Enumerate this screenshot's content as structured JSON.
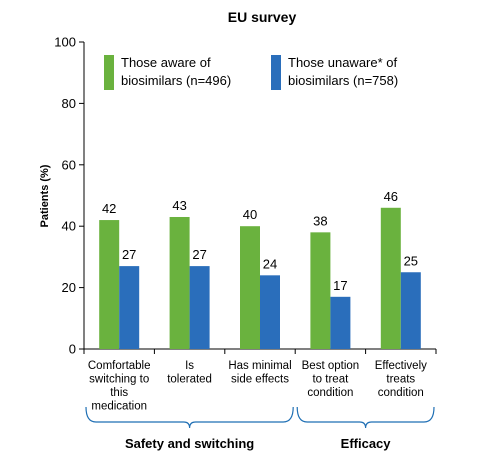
{
  "chart_data": {
    "type": "bar",
    "title": "EU survey",
    "ylabel": "Patients (%)",
    "xlabel": "",
    "ylim": [
      0,
      100
    ],
    "yticks": [
      0,
      20,
      40,
      60,
      80,
      100
    ],
    "grid": false,
    "legend_position": "top",
    "categories": [
      [
        "Comfortable",
        "switching to",
        "this",
        "medication"
      ],
      [
        "Is",
        "tolerated"
      ],
      [
        "Has minimal",
        "side effects"
      ],
      [
        "Best option",
        "to treat",
        "condition"
      ],
      [
        "Effectively",
        "treats",
        "condition"
      ]
    ],
    "series": [
      {
        "name": "Those aware of biosimilars (n=496)",
        "legend_lines": [
          "Those aware of",
          "biosimilars (n=496)"
        ],
        "color": "#6ab23e",
        "values": [
          42,
          43,
          40,
          38,
          46
        ]
      },
      {
        "name": "Those unaware* of biosimilars (n=758)",
        "legend_lines": [
          "Those unaware* of",
          "biosimilars (n=758)"
        ],
        "color": "#2a6ebb",
        "values": [
          27,
          27,
          24,
          17,
          25
        ]
      }
    ],
    "groups": [
      {
        "label": "Safety and switching",
        "categories": [
          0,
          1,
          2
        ]
      },
      {
        "label": "Efficacy",
        "categories": [
          3,
          4
        ]
      }
    ],
    "bracket_color": "#1f6fb4"
  }
}
